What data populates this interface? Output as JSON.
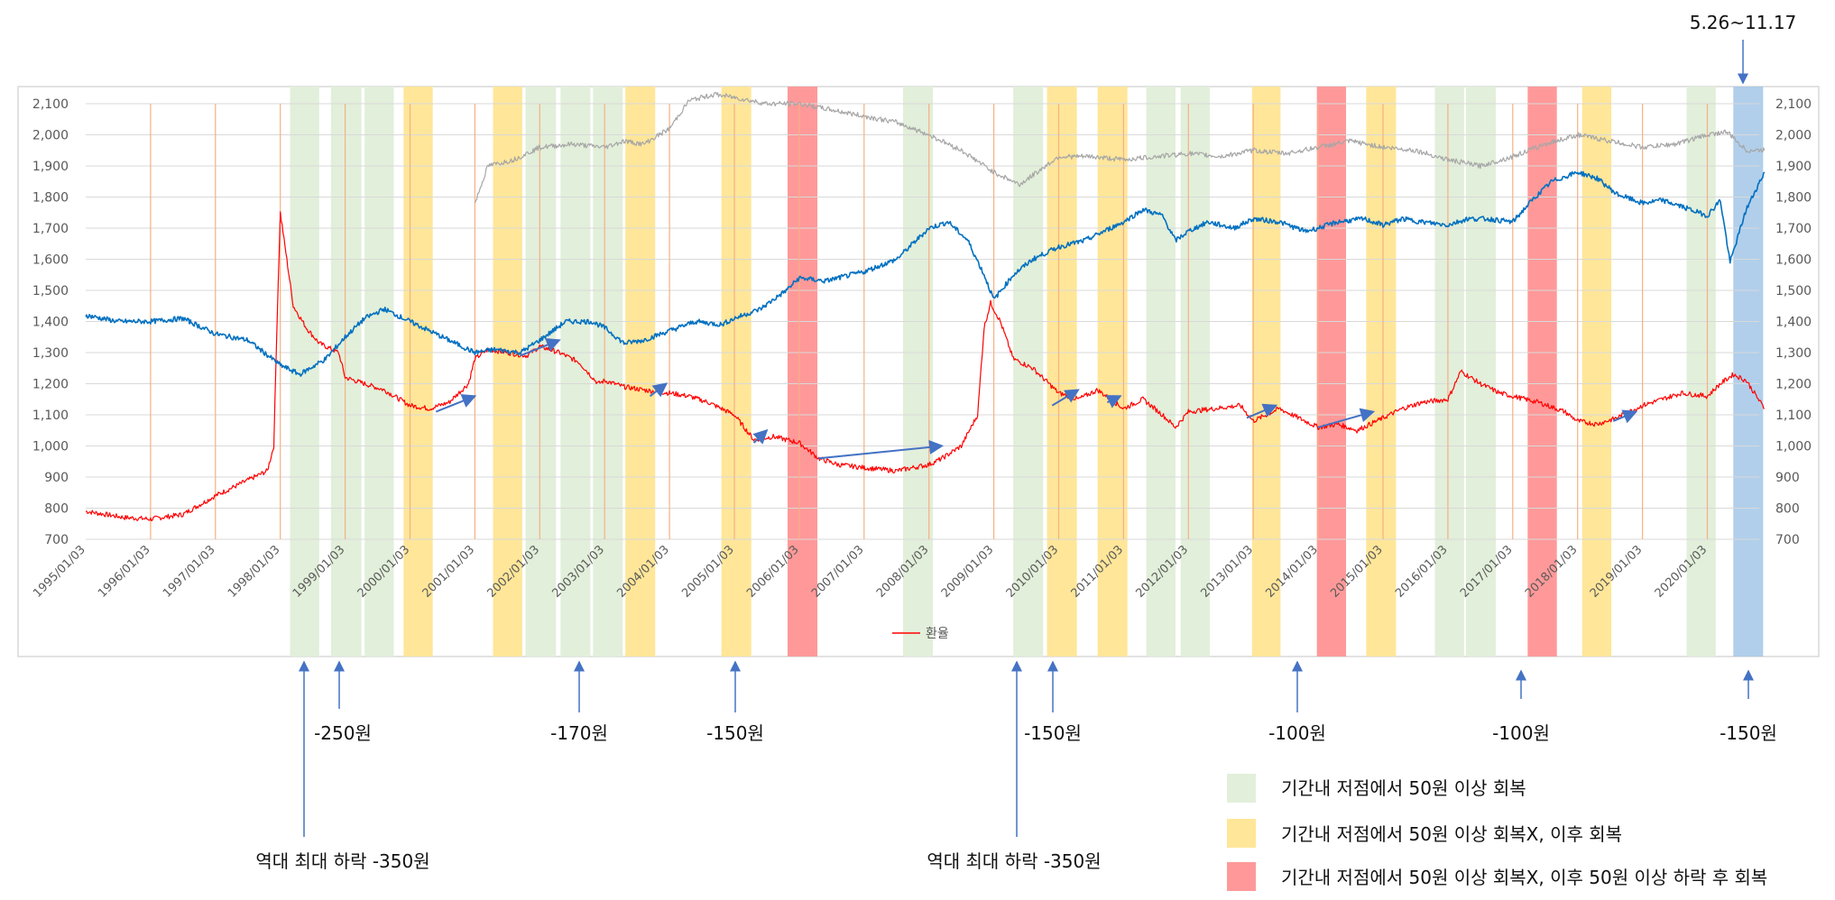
{
  "chart_data": {
    "type": "line",
    "title": "",
    "xlabel": "",
    "ylabel": "",
    "ylim": [
      700,
      2100
    ],
    "yticks": [
      "700",
      "800",
      "900",
      "1,000",
      "1,100",
      "1,200",
      "1,300",
      "1,400",
      "1,500",
      "1,600",
      "1,700",
      "1,800",
      "1,900",
      "2,000",
      "2,100"
    ],
    "xticks": [
      "1995/01/03",
      "1996/01/03",
      "1997/01/03",
      "1998/01/03",
      "1999/01/03",
      "2000/01/03",
      "2001/01/03",
      "2002/01/03",
      "2003/01/03",
      "2004/01/03",
      "2005/01/03",
      "2006/01/03",
      "2007/01/03",
      "2008/01/03",
      "2009/01/03",
      "2010/01/03",
      "2011/01/03",
      "2012/01/03",
      "2013/01/03",
      "2014/01/03",
      "2015/01/03",
      "2016/01/03",
      "2017/01/03",
      "2018/01/03",
      "2019/01/03",
      "2020/01/03"
    ],
    "grid": true,
    "legend_position": "bottom",
    "colors": {
      "red": "#ff0000",
      "blue": "#0070c0",
      "gray": "#a6a6a6",
      "green": "#e2efda",
      "yellow": "#ffe699",
      "pink": "#ff9999",
      "lightblue": "#9dc3e6",
      "orange_line": "#f4b183",
      "arrow": "#4472c4"
    },
    "series": [
      {
        "name": "환율",
        "color": "#ff0000",
        "x": [
          1995.0,
          1995.3,
          1995.6,
          1996.0,
          1996.5,
          1997.0,
          1997.5,
          1997.8,
          1997.9,
          1997.95,
          1998.0,
          1998.1,
          1998.2,
          1998.4,
          1998.6,
          1998.9,
          1999.0,
          1999.3,
          1999.6,
          2000.0,
          2000.3,
          2000.6,
          2000.9,
          2001.0,
          2001.2,
          2001.5,
          2001.8,
          2002.0,
          2002.3,
          2002.6,
          2002.9,
          2003.0,
          2003.3,
          2003.6,
          2004.0,
          2004.3,
          2004.6,
          2005.0,
          2005.3,
          2005.6,
          2006.0,
          2006.3,
          2006.6,
          2007.0,
          2007.5,
          2008.0,
          2008.2,
          2008.5,
          2008.75,
          2008.85,
          2008.95,
          2009.1,
          2009.3,
          2009.6,
          2010.0,
          2010.3,
          2010.6,
          2011.0,
          2011.3,
          2011.6,
          2011.8,
          2012.0,
          2012.4,
          2012.8,
          2013.0,
          2013.4,
          2013.8,
          2014.0,
          2014.3,
          2014.6,
          2015.0,
          2015.3,
          2015.6,
          2016.0,
          2016.2,
          2016.5,
          2016.8,
          2017.0,
          2017.4,
          2017.8,
          2018.0,
          2018.3,
          2018.6,
          2019.0,
          2019.3,
          2019.6,
          2020.0,
          2020.2,
          2020.4,
          2020.6,
          2020.88
        ],
        "values": [
          790,
          780,
          770,
          765,
          780,
          840,
          890,
          920,
          1000,
          1400,
          1750,
          1600,
          1450,
          1380,
          1330,
          1300,
          1220,
          1200,
          1180,
          1130,
          1120,
          1140,
          1200,
          1280,
          1310,
          1300,
          1290,
          1320,
          1300,
          1270,
          1200,
          1210,
          1190,
          1180,
          1170,
          1160,
          1140,
          1100,
          1020,
          1030,
          1010,
          960,
          940,
          930,
          920,
          940,
          960,
          1000,
          1100,
          1380,
          1460,
          1400,
          1280,
          1250,
          1170,
          1150,
          1180,
          1120,
          1150,
          1100,
          1060,
          1110,
          1120,
          1130,
          1080,
          1120,
          1080,
          1060,
          1070,
          1050,
          1090,
          1120,
          1140,
          1150,
          1240,
          1200,
          1170,
          1160,
          1140,
          1110,
          1080,
          1070,
          1090,
          1130,
          1150,
          1170,
          1160,
          1200,
          1230,
          1210,
          1120
        ]
      },
      {
        "name": "",
        "color": "#0070c0",
        "x": [
          1995.0,
          1995.5,
          1996.0,
          1996.5,
          1997.0,
          1997.5,
          1998.0,
          1998.3,
          1998.7,
          1999.0,
          1999.3,
          1999.6,
          2000.0,
          2000.4,
          2000.8,
          2001.0,
          2001.3,
          2001.7,
          2002.0,
          2002.4,
          2002.8,
          2003.0,
          2003.3,
          2003.6,
          2004.0,
          2004.4,
          2004.8,
          2005.0,
          2005.4,
          2005.8,
          2006.0,
          2006.4,
          2006.8,
          2007.0,
          2007.5,
          2008.0,
          2008.3,
          2008.6,
          2008.85,
          2009.0,
          2009.3,
          2009.6,
          2010.0,
          2010.4,
          2010.8,
          2011.0,
          2011.3,
          2011.6,
          2011.8,
          2012.0,
          2012.3,
          2012.7,
          2013.0,
          2013.4,
          2013.8,
          2014.0,
          2014.3,
          2014.7,
          2015.0,
          2015.3,
          2015.6,
          2016.0,
          2016.3,
          2016.6,
          2017.0,
          2017.3,
          2017.6,
          2018.0,
          2018.3,
          2018.6,
          2019.0,
          2019.3,
          2019.6,
          2020.0,
          2020.2,
          2020.35,
          2020.6,
          2020.88
        ],
        "values": [
          1420,
          1400,
          1400,
          1410,
          1360,
          1340,
          1260,
          1230,
          1280,
          1350,
          1410,
          1440,
          1400,
          1360,
          1320,
          1300,
          1310,
          1300,
          1340,
          1400,
          1400,
          1380,
          1330,
          1340,
          1370,
          1400,
          1390,
          1410,
          1440,
          1500,
          1540,
          1530,
          1550,
          1560,
          1600,
          1700,
          1720,
          1660,
          1550,
          1470,
          1550,
          1600,
          1640,
          1660,
          1700,
          1720,
          1760,
          1740,
          1660,
          1690,
          1720,
          1700,
          1730,
          1720,
          1690,
          1700,
          1720,
          1730,
          1710,
          1730,
          1720,
          1710,
          1730,
          1730,
          1720,
          1790,
          1850,
          1880,
          1860,
          1810,
          1780,
          1790,
          1770,
          1740,
          1790,
          1590,
          1760,
          1880
        ]
      },
      {
        "name": "",
        "color": "#a6a6a6",
        "x": [
          2001.0,
          2001.2,
          2001.6,
          2002.0,
          2002.5,
          2003.0,
          2003.3,
          2003.6,
          2004.0,
          2004.3,
          2004.7,
          2005.0,
          2005.5,
          2006.0,
          2006.5,
          2007.0,
          2007.5,
          2008.0,
          2008.5,
          2009.0,
          2009.4,
          2009.8,
          2010.0,
          2010.5,
          2011.0,
          2011.5,
          2012.0,
          2012.5,
          2013.0,
          2013.5,
          2014.0,
          2014.5,
          2015.0,
          2015.5,
          2016.0,
          2016.5,
          2017.0,
          2017.5,
          2018.0,
          2018.5,
          2019.0,
          2019.5,
          2020.0,
          2020.3,
          2020.6,
          2020.88
        ],
        "values": [
          1780,
          1900,
          1920,
          1960,
          1970,
          1960,
          1980,
          1970,
          2020,
          2110,
          2130,
          2120,
          2100,
          2100,
          2080,
          2060,
          2040,
          2000,
          1950,
          1880,
          1840,
          1900,
          1930,
          1930,
          1920,
          1930,
          1940,
          1930,
          1950,
          1940,
          1960,
          1980,
          1960,
          1950,
          1920,
          1900,
          1930,
          1970,
          2000,
          1980,
          1960,
          1970,
          2000,
          2010,
          1950,
          1950
        ]
      }
    ],
    "annotations": {
      "top_label": "5.26~11.17",
      "drops": [
        "-250원",
        "-170원",
        "-150원",
        "-150원",
        "-100원",
        "-100원",
        "-150원"
      ],
      "max_drop_1": "역대 최대 하락 -350원",
      "max_drop_2": "역대 최대 하락 -350원"
    },
    "legend_items": [
      "기간내 저점에서 50원 이상 회복",
      "기간내 저점에서 50원 이상 회복X, 이후 회복",
      "기간내 저점에서 50원 이상 회복X, 이후 50원 이상 하락 후 회복"
    ]
  }
}
